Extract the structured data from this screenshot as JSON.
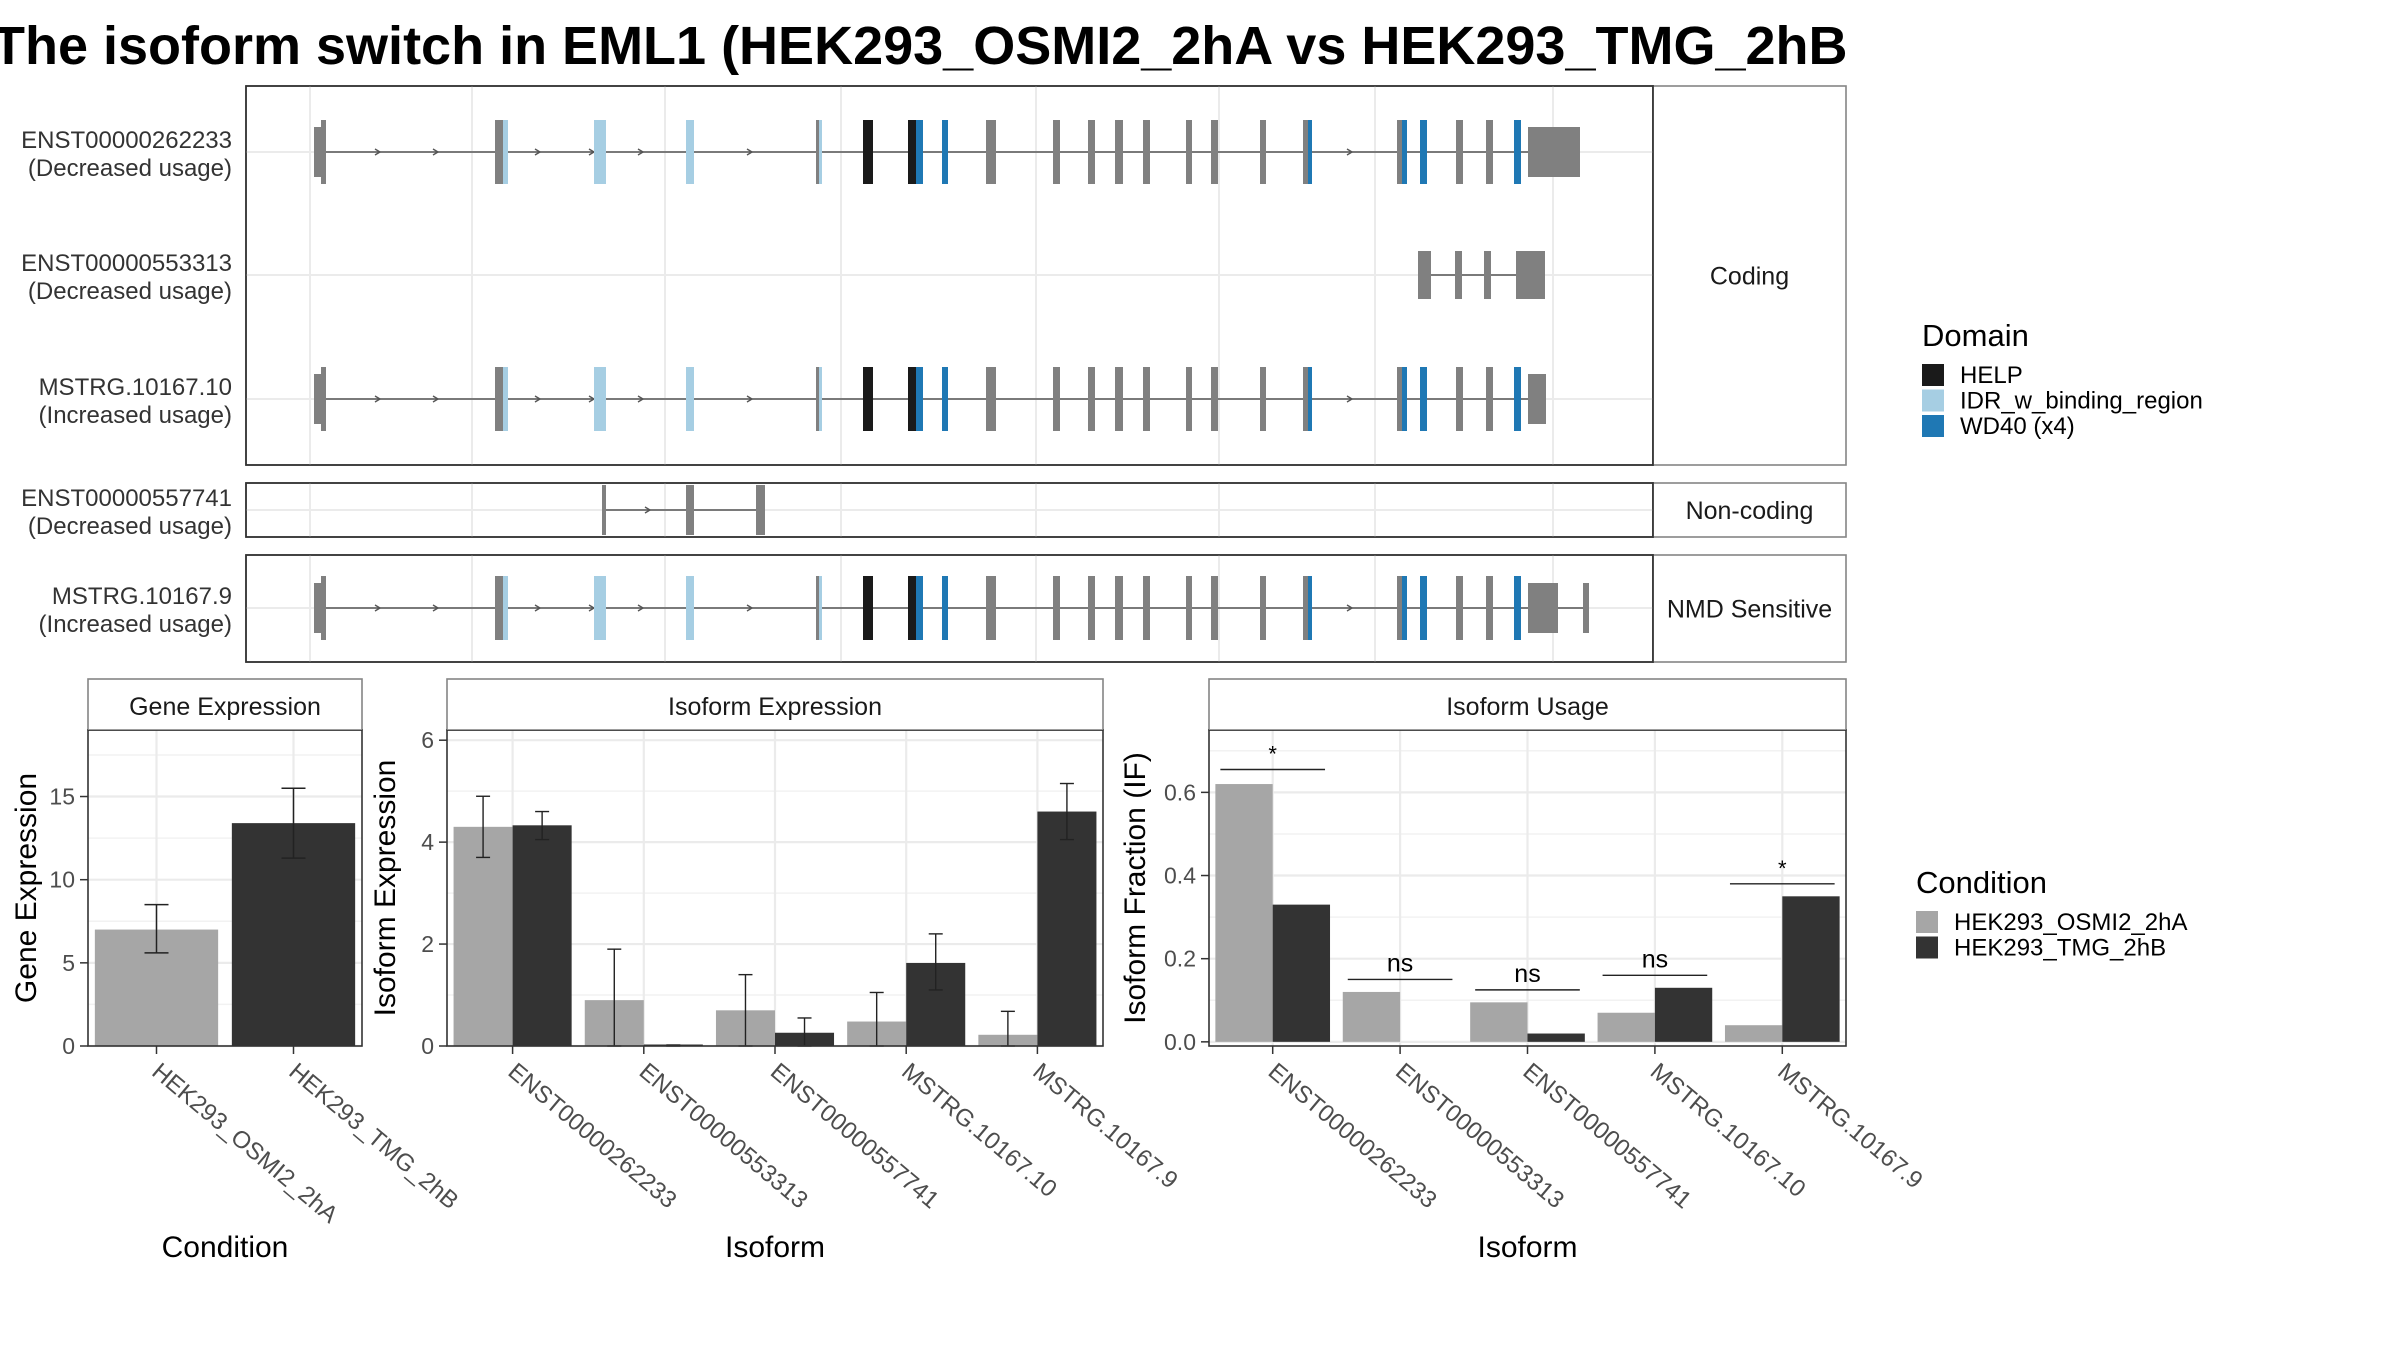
{
  "title": "The isoform switch in EML1 (HEK293_OSMI2_2hA vs HEK293_TMG_2hB",
  "colors": {
    "exon": "#808080",
    "help": "#1a1a1a",
    "idr": "#a6cee3",
    "wd40": "#1f78b4",
    "cond_a": "#a6a6a6",
    "cond_b": "#333333",
    "panel_strip": "#ffffff",
    "grid": "#ebebeb"
  },
  "transcripts": {
    "groups": [
      {
        "label": "Coding",
        "transcripts": [
          {
            "id": "ENST00000262233",
            "usage": "(Decreased usage)",
            "structure": "full"
          },
          {
            "id": "ENST00000553313",
            "usage": "(Decreased usage)",
            "structure": "short"
          },
          {
            "id": "MSTRG.10167.10",
            "usage": "(Increased usage)",
            "structure": "full2"
          }
        ]
      },
      {
        "label": "Non-coding",
        "transcripts": [
          {
            "id": "ENST00000557741",
            "usage": "(Decreased usage)",
            "structure": "noncoding"
          }
        ]
      },
      {
        "label": "NMD Sensitive",
        "transcripts": [
          {
            "id": "MSTRG.10167.9",
            "usage": "(Increased usage)",
            "structure": "nmd"
          }
        ]
      }
    ]
  },
  "legends": {
    "domain": {
      "title": "Domain",
      "items": [
        {
          "label": "HELP",
          "color_key": "help"
        },
        {
          "label": "IDR_w_binding_region",
          "color_key": "idr"
        },
        {
          "label": "WD40 (x4)",
          "color_key": "wd40"
        }
      ]
    },
    "condition": {
      "title": "Condition",
      "items": [
        {
          "label": "HEK293_OSMI2_2hA",
          "color_key": "cond_a"
        },
        {
          "label": "HEK293_TMG_2hB",
          "color_key": "cond_b"
        }
      ]
    }
  },
  "chart_data": [
    {
      "type": "bar",
      "title": "Gene Expression",
      "xlabel": "Condition",
      "ylabel": "Gene Expression",
      "ylim": [
        0,
        19
      ],
      "yticks": [
        0,
        5,
        10,
        15
      ],
      "categories": [
        "HEK293_OSMI2_2hA",
        "HEK293_TMG_2hB"
      ],
      "values": [
        7.0,
        13.4
      ],
      "errors_low": [
        5.6,
        11.3
      ],
      "errors_high": [
        8.5,
        15.5
      ]
    },
    {
      "type": "bar",
      "title": "Isoform Expression",
      "xlabel": "Isoform",
      "ylabel": "Isoform Expression",
      "ylim": [
        0,
        6.2
      ],
      "yticks": [
        0,
        2,
        4,
        6
      ],
      "categories": [
        "ENST00000262233",
        "ENST00000553313",
        "ENST00000557741",
        "MSTRG.10167.10",
        "MSTRG.10167.9"
      ],
      "series": [
        {
          "name": "HEK293_OSMI2_2hA",
          "values": [
            4.3,
            0.9,
            0.7,
            0.48,
            0.22
          ],
          "errors_low": [
            3.7,
            0.0,
            0.0,
            0.0,
            0.0
          ],
          "errors_high": [
            4.9,
            1.9,
            1.4,
            1.05,
            0.68
          ]
        },
        {
          "name": "HEK293_TMG_2hB",
          "values": [
            4.33,
            0.0,
            0.26,
            1.63,
            4.6
          ],
          "errors_low": [
            4.05,
            0.0,
            0.0,
            1.1,
            4.05
          ],
          "errors_high": [
            4.6,
            0.02,
            0.55,
            2.2,
            5.15
          ]
        }
      ]
    },
    {
      "type": "bar",
      "title": "Isoform Usage",
      "xlabel": "Isoform",
      "ylabel": "Isoform Fraction (IF)",
      "ylim": [
        -0.01,
        0.75
      ],
      "yticks": [
        0.0,
        0.2,
        0.4,
        0.6
      ],
      "ytick_labels": [
        "0.0",
        "0.2",
        "0.4",
        "0.6"
      ],
      "categories": [
        "ENST00000262233",
        "ENST00000553313",
        "ENST00000557741",
        "MSTRG.10167.10",
        "MSTRG.10167.9"
      ],
      "series": [
        {
          "name": "HEK293_OSMI2_2hA",
          "values": [
            0.62,
            0.12,
            0.095,
            0.07,
            0.04
          ]
        },
        {
          "name": "HEK293_TMG_2hB",
          "values": [
            0.33,
            0.0,
            0.02,
            0.13,
            0.35
          ]
        }
      ],
      "significance": [
        "*",
        "ns",
        "ns",
        "ns",
        "*"
      ],
      "significance_y": [
        0.655,
        0.15,
        0.125,
        0.16,
        0.38
      ]
    }
  ]
}
